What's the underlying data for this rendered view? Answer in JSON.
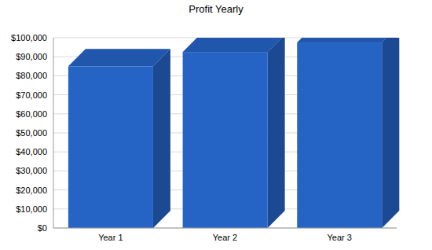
{
  "chart_data": {
    "type": "bar",
    "title": "Profit Yearly",
    "categories": [
      "Year 1",
      "Year 2",
      "Year 3"
    ],
    "values": [
      85000,
      92500,
      97500
    ],
    "color": "#2563c4",
    "ylim": [
      0,
      100000
    ],
    "yticks": [
      {
        "value": 0,
        "label": "$0"
      },
      {
        "value": 10000,
        "label": "$10,000"
      },
      {
        "value": 20000,
        "label": "$20,000"
      },
      {
        "value": 30000,
        "label": "$30,000"
      },
      {
        "value": 40000,
        "label": "$40,000"
      },
      {
        "value": 50000,
        "label": "$50,000"
      },
      {
        "value": 60000,
        "label": "$60,000"
      },
      {
        "value": 70000,
        "label": "$70,000"
      },
      {
        "value": 80000,
        "label": "$80,000"
      },
      {
        "value": 90000,
        "label": "$90,000"
      },
      {
        "value": 100000,
        "label": "$100,000"
      }
    ],
    "grid": true
  }
}
